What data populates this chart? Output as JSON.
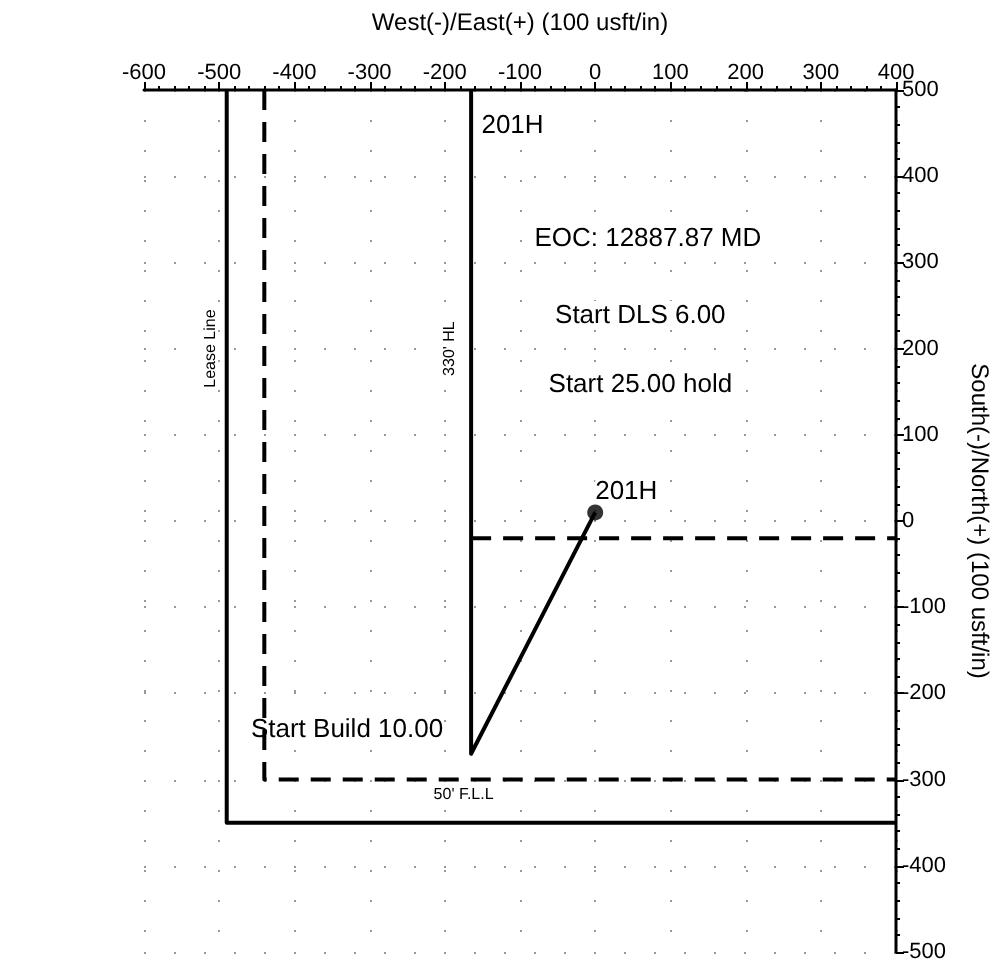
{
  "chart_data": {
    "type": "line",
    "xlabel": "West(-)/East(+) (100 usft/in)",
    "ylabel": "South(-)/North(+) (100 usft/in)",
    "xlim": [
      -600,
      400
    ],
    "xticks": [
      -600,
      -500,
      -400,
      -300,
      -200,
      -100,
      0,
      100,
      200,
      300,
      400
    ],
    "ylim": [
      -500,
      500
    ],
    "yticks": [
      -500,
      -400,
      -300,
      -200,
      -100,
      0,
      100,
      200,
      300,
      400,
      500
    ],
    "grid": true,
    "series": [
      {
        "color": "#000000",
        "line_style": "solid",
        "x": [
          -490,
          -490,
          400
        ],
        "values": [
          500,
          -350,
          -350
        ]
      },
      {
        "color": "#000000",
        "line_style": "dashed",
        "x": [
          -440,
          -440,
          400
        ],
        "values": [
          500,
          -300,
          -300
        ]
      },
      {
        "color": "#000000",
        "line_style": "dashed",
        "x": [
          -165,
          400
        ],
        "values": [
          -20,
          -20
        ]
      },
      {
        "color": "#000000",
        "line_style": "solid",
        "x": [
          0,
          -165,
          -165
        ],
        "values": [
          10,
          -270,
          500
        ]
      },
      {
        "type": "scatter",
        "color": "#000000",
        "marker": "circle",
        "x": [
          0
        ],
        "values": [
          10
        ]
      }
    ],
    "annotations": [
      "201H",
      "EOC: 12887.87 MD",
      "Start DLS 6.00",
      "Start 25.00 hold",
      {
        "text": "201H",
        "x": 0,
        "y": 10
      },
      "Start Build 10.00",
      "330' HL",
      "Lease Line",
      "50' F.L.L"
    ]
  }
}
